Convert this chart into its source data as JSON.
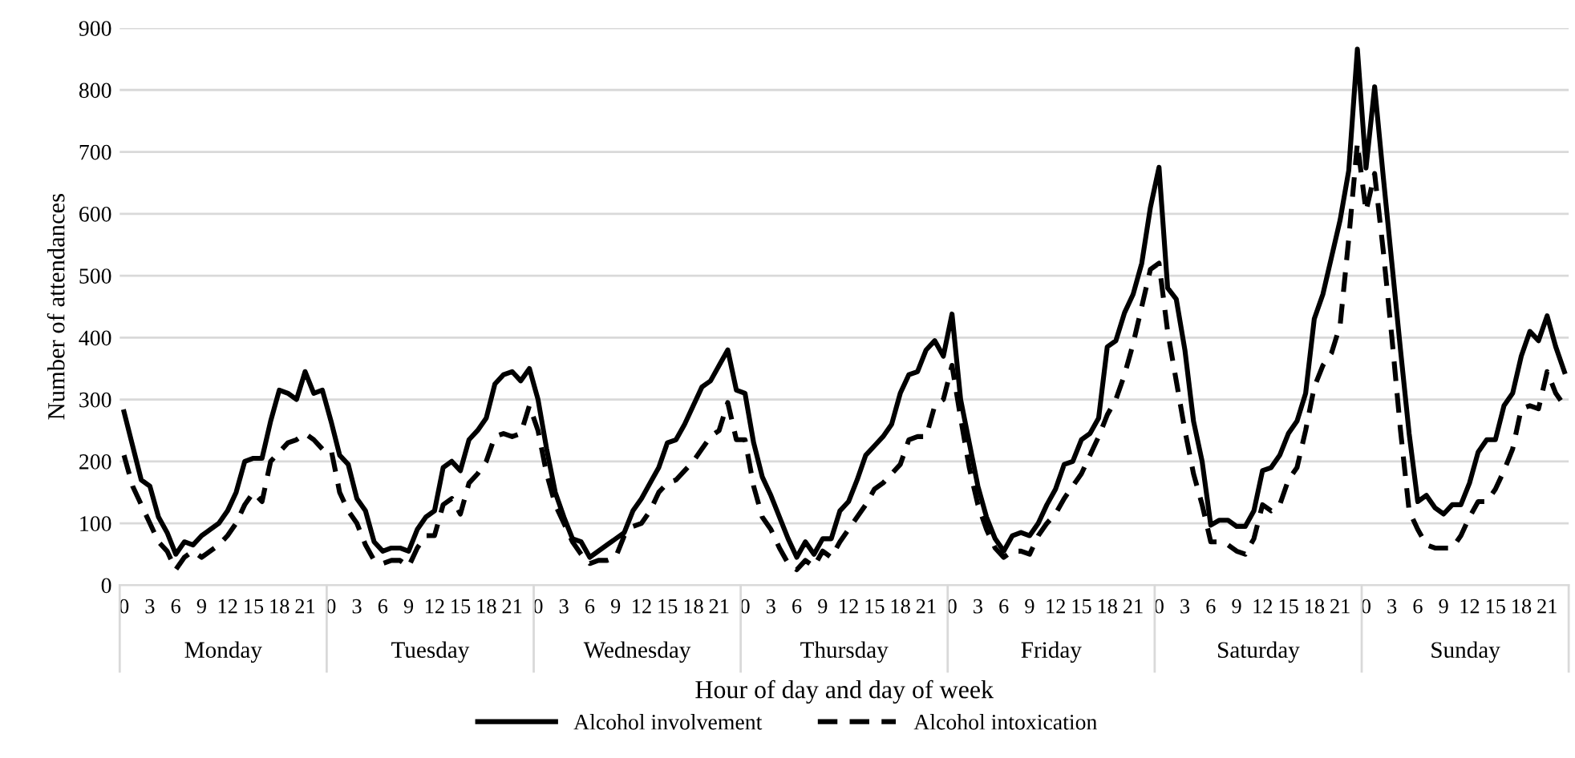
{
  "chart_data": {
    "type": "line",
    "xlabel": "Hour of day and day of week",
    "ylabel": "Number of attendances",
    "categories": [
      "0",
      null,
      null,
      "3",
      null,
      null,
      "6",
      null,
      null,
      "9",
      null,
      null,
      "12",
      null,
      null,
      "15",
      null,
      null,
      "18",
      null,
      null,
      "21",
      null,
      null,
      "0",
      null,
      null,
      "3",
      null,
      null,
      "6",
      null,
      null,
      "9",
      null,
      null,
      "12",
      null,
      null,
      "15",
      null,
      null,
      "18",
      null,
      null,
      "21",
      null,
      null,
      "0",
      null,
      null,
      "3",
      null,
      null,
      "6",
      null,
      null,
      "9",
      null,
      null,
      "12",
      null,
      null,
      "15",
      null,
      null,
      "18",
      null,
      null,
      "21",
      null,
      null,
      "0",
      null,
      null,
      "3",
      null,
      null,
      "6",
      null,
      null,
      "9",
      null,
      null,
      "12",
      null,
      null,
      "15",
      null,
      null,
      "18",
      null,
      null,
      "21",
      null,
      null,
      "0",
      null,
      null,
      "3",
      null,
      null,
      "6",
      null,
      null,
      "9",
      null,
      null,
      "12",
      null,
      null,
      "15",
      null,
      null,
      "18",
      null,
      null,
      "21",
      null,
      null,
      "0",
      null,
      null,
      "3",
      null,
      null,
      "6",
      null,
      null,
      "9",
      null,
      null,
      "12",
      null,
      null,
      "15",
      null,
      null,
      "18",
      null,
      null,
      "21",
      null,
      null,
      "0",
      null,
      null,
      "3",
      null,
      null,
      "6",
      null,
      null,
      "9",
      null,
      null,
      "12",
      null,
      null,
      "15",
      null,
      null,
      "18",
      null,
      null,
      "21",
      null,
      null
    ],
    "annotations": [
      "Monday",
      "Tuesday",
      "Wednesday",
      "Thursday",
      "Friday",
      "Saturday",
      "Sunday"
    ],
    "series": [
      {
        "name": "Alcohol involvement",
        "color": "#000000",
        "line_style": "solid",
        "values": [
          280,
          225,
          170,
          160,
          110,
          85,
          50,
          70,
          65,
          80,
          90,
          100,
          120,
          150,
          200,
          205,
          205,
          265,
          315,
          310,
          300,
          345,
          310,
          315,
          265,
          210,
          195,
          140,
          120,
          70,
          55,
          60,
          60,
          55,
          90,
          110,
          120,
          190,
          200,
          185,
          235,
          250,
          270,
          325,
          340,
          345,
          330,
          350,
          300,
          220,
          150,
          110,
          75,
          70,
          45,
          55,
          65,
          75,
          85,
          120,
          140,
          165,
          190,
          230,
          235,
          260,
          290,
          320,
          330,
          355,
          380,
          315,
          310,
          230,
          175,
          145,
          110,
          75,
          45,
          70,
          50,
          75,
          75,
          120,
          135,
          170,
          210,
          225,
          240,
          260,
          310,
          340,
          345,
          380,
          395,
          370,
          438,
          300,
          230,
          160,
          110,
          75,
          55,
          80,
          85,
          80,
          100,
          130,
          155,
          195,
          200,
          235,
          245,
          270,
          385,
          395,
          440,
          470,
          520,
          610,
          675,
          480,
          462,
          380,
          265,
          200,
          97,
          105,
          105,
          95,
          95,
          120,
          185,
          190,
          210,
          245,
          265,
          310,
          430,
          470,
          530,
          590,
          670,
          866,
          674,
          805,
          660,
          520,
          380,
          245,
          135,
          145,
          125,
          115,
          130,
          130,
          165,
          215,
          235,
          235,
          290,
          310,
          370,
          410,
          395,
          435,
          385,
          345
        ]
      },
      {
        "name": "Alcohol intoxication",
        "color": "#000000",
        "line_style": "dashed",
        "values": [
          210,
          160,
          130,
          100,
          70,
          55,
          25,
          45,
          55,
          45,
          55,
          65,
          80,
          100,
          130,
          150,
          135,
          200,
          215,
          230,
          235,
          245,
          235,
          220,
          220,
          150,
          120,
          100,
          65,
          40,
          35,
          40,
          40,
          30,
          60,
          80,
          80,
          130,
          140,
          115,
          165,
          180,
          200,
          240,
          245,
          240,
          245,
          290,
          250,
          180,
          130,
          100,
          70,
          50,
          35,
          40,
          40,
          45,
          80,
          95,
          100,
          120,
          150,
          165,
          170,
          185,
          200,
          220,
          240,
          250,
          295,
          235,
          235,
          160,
          110,
          90,
          60,
          35,
          25,
          40,
          30,
          55,
          45,
          70,
          90,
          110,
          130,
          155,
          165,
          180,
          195,
          235,
          240,
          240,
          290,
          300,
          355,
          270,
          190,
          130,
          90,
          60,
          45,
          55,
          55,
          50,
          80,
          100,
          115,
          140,
          160,
          180,
          210,
          240,
          275,
          300,
          340,
          390,
          450,
          510,
          520,
          410,
          330,
          250,
          180,
          130,
          70,
          70,
          65,
          55,
          50,
          75,
          130,
          120,
          130,
          170,
          190,
          250,
          320,
          355,
          375,
          420,
          560,
          714,
          604,
          665,
          540,
          400,
          250,
          120,
          90,
          65,
          60,
          60,
          60,
          80,
          110,
          135,
          135,
          155,
          185,
          220,
          285,
          290,
          285,
          345,
          310,
          290
        ]
      }
    ],
    "ylim": [
      0,
      900
    ],
    "yticks": [
      0,
      100,
      200,
      300,
      400,
      500,
      600,
      700,
      800,
      900
    ],
    "grid": "y",
    "legend": "bottom",
    "marker": "none"
  }
}
